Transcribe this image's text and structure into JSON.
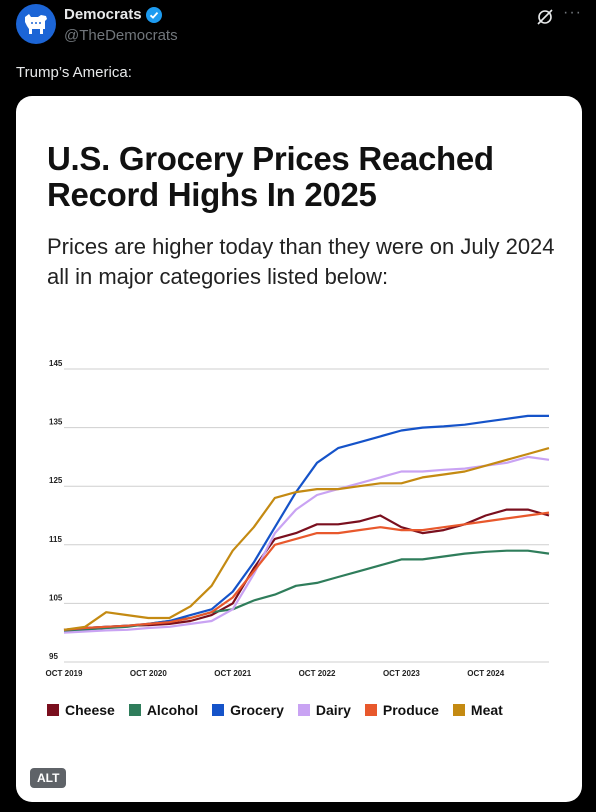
{
  "post": {
    "display_name": "Democrats",
    "handle": "@TheDemocrats",
    "text": "Trump’s America:",
    "alt_badge": "ALT"
  },
  "card": {
    "title": "U.S. Grocery Prices Reached Record Highs In 2025",
    "subtitle": "Prices are higher today than they were on July 2024 all in major categories listed below:"
  },
  "colors": {
    "Cheese": "#7a0f1e",
    "Alcohol": "#2f7d5b",
    "Grocery": "#1553c9",
    "Dairy": "#c9a3f3",
    "Produce": "#e8582c",
    "Meat": "#c48a12"
  },
  "chart_data": {
    "type": "line",
    "title": "",
    "xlabel": "",
    "ylabel": "",
    "ylim": [
      95,
      145
    ],
    "yticks": [
      95,
      105,
      115,
      125,
      135,
      145
    ],
    "xtick_labels": [
      "OCT 2019",
      "OCT 2020",
      "OCT 2021",
      "OCT 2022",
      "OCT 2023",
      "OCT 2024"
    ],
    "xtick_positions": [
      2019.75,
      2020.75,
      2021.75,
      2022.75,
      2023.75,
      2024.75
    ],
    "x": [
      2019.75,
      2020.0,
      2020.25,
      2020.5,
      2020.75,
      2021.0,
      2021.25,
      2021.5,
      2021.75,
      2022.0,
      2022.25,
      2022.5,
      2022.75,
      2023.0,
      2023.25,
      2023.5,
      2023.75,
      2024.0,
      2024.25,
      2024.5,
      2024.75,
      2025.0,
      2025.25,
      2025.5
    ],
    "series": [
      {
        "name": "Cheese",
        "values": [
          100.5,
          100.8,
          101.0,
          101.2,
          101.3,
          101.5,
          102.0,
          103.0,
          105.0,
          111.0,
          116.0,
          117.0,
          118.5,
          118.5,
          119.0,
          120.0,
          118.0,
          117.0,
          117.5,
          118.5,
          120.0,
          121.0,
          121.0,
          120.0
        ]
      },
      {
        "name": "Alcohol",
        "values": [
          100.2,
          100.5,
          100.8,
          101.0,
          101.5,
          102.0,
          102.5,
          103.5,
          104.0,
          105.5,
          106.5,
          108.0,
          108.5,
          109.5,
          110.5,
          111.5,
          112.5,
          112.5,
          113.0,
          113.5,
          113.8,
          114.0,
          114.0,
          113.5
        ]
      },
      {
        "name": "Grocery",
        "values": [
          100.5,
          100.8,
          101.0,
          101.2,
          101.5,
          102.0,
          103.0,
          104.0,
          107.0,
          112.0,
          118.0,
          124.0,
          129.0,
          131.5,
          132.5,
          133.5,
          134.5,
          135.0,
          135.2,
          135.5,
          136.0,
          136.5,
          137.0,
          137.0
        ]
      },
      {
        "name": "Dairy",
        "values": [
          100.0,
          100.2,
          100.4,
          100.5,
          100.8,
          101.0,
          101.5,
          102.0,
          104.0,
          110.0,
          117.0,
          121.0,
          123.5,
          124.5,
          125.5,
          126.5,
          127.5,
          127.5,
          127.8,
          128.0,
          128.5,
          129.0,
          130.0,
          129.5
        ]
      },
      {
        "name": "Produce",
        "values": [
          100.5,
          100.8,
          101.0,
          101.2,
          101.5,
          101.8,
          102.5,
          103.5,
          106.0,
          110.5,
          115.0,
          116.0,
          117.0,
          117.0,
          117.5,
          118.0,
          117.5,
          117.5,
          118.0,
          118.5,
          119.0,
          119.5,
          120.0,
          120.5
        ]
      },
      {
        "name": "Meat",
        "values": [
          100.5,
          101.0,
          103.5,
          103.0,
          102.5,
          102.5,
          104.5,
          108.0,
          114.0,
          118.0,
          123.0,
          124.0,
          124.5,
          124.5,
          125.0,
          125.5,
          125.5,
          126.5,
          127.0,
          127.5,
          128.5,
          129.5,
          130.5,
          131.5
        ]
      }
    ],
    "legend_placement": "bottom",
    "grid": true
  }
}
